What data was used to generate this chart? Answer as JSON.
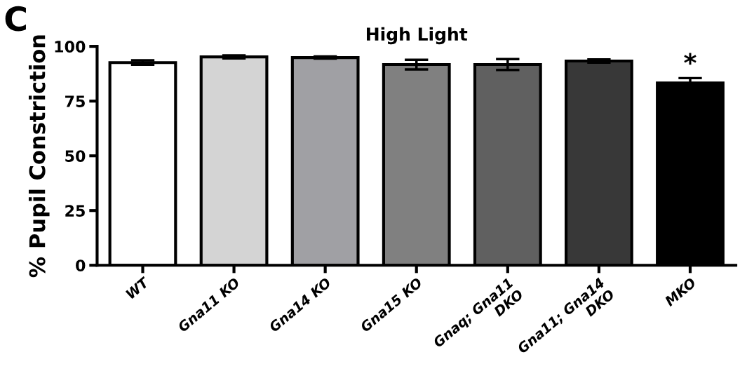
{
  "chart_data": {
    "type": "bar",
    "title": "High Light",
    "ylabel": "% Pupil Constriction",
    "categories": [
      "WT",
      "Gna11 KO",
      "Gna14 KO",
      "Gna15 KO",
      "Gnaq; Gna11\nDKO",
      "Gna11; Gna14\nDKO",
      "MKO"
    ],
    "values": [
      92.6,
      95.2,
      94.9,
      91.7,
      91.7,
      93.3,
      83.3
    ],
    "errors": [
      1.0,
      0.7,
      0.5,
      2.2,
      2.5,
      0.7,
      2.2
    ],
    "colors": [
      "#ffffff",
      "#d4d4d4",
      "#a0a0a4",
      "#808080",
      "#606060",
      "#383838",
      "#000000"
    ],
    "ylim": [
      0,
      100
    ],
    "yticks": [
      0,
      25,
      50,
      75,
      100
    ],
    "grid": false,
    "annotations": [
      "C",
      {
        "text": "*",
        "x": "MKO",
        "y": 86
      }
    ]
  }
}
